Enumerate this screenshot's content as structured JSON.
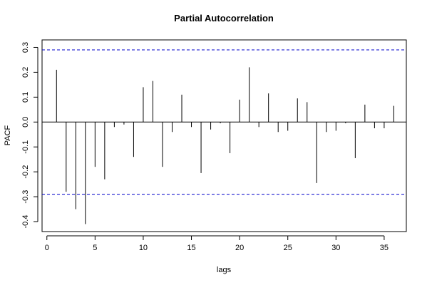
{
  "chart_data": {
    "type": "bar",
    "title": "Partial Autocorrelation",
    "xlabel": "lags",
    "ylabel": "PACF",
    "xlim": [
      -0.5,
      37.3
    ],
    "ylim": [
      -0.44,
      0.33
    ],
    "x_ticks": [
      0,
      5,
      10,
      15,
      20,
      25,
      30,
      35
    ],
    "y_ticks": [
      -0.4,
      -0.3,
      -0.2,
      -0.1,
      0.0,
      0.1,
      0.2,
      0.3
    ],
    "y_tick_labels": [
      "-0.4",
      "-0.3",
      "-0.2",
      "-0.1",
      "0.0",
      "0.1",
      "0.2",
      "0.3"
    ],
    "confidence_bounds": [
      0.29,
      -0.29
    ],
    "confidence_line_color": "#0000cc",
    "series": [
      {
        "x": [
          1,
          2,
          3,
          4,
          5,
          6,
          7,
          8,
          9,
          10,
          11,
          12,
          13,
          14,
          15,
          16,
          17,
          18,
          19,
          20,
          21,
          22,
          23,
          24,
          25,
          26,
          27,
          28,
          29,
          30,
          31,
          32,
          33,
          34,
          35,
          36
        ],
        "values": [
          0.21,
          -0.28,
          -0.35,
          -0.41,
          -0.18,
          -0.23,
          -0.02,
          -0.01,
          -0.14,
          0.14,
          0.165,
          -0.18,
          -0.04,
          0.11,
          -0.02,
          -0.205,
          -0.03,
          -0.005,
          -0.125,
          0.09,
          0.22,
          -0.02,
          0.115,
          -0.04,
          -0.035,
          0.095,
          0.08,
          -0.245,
          -0.04,
          -0.035,
          -0.005,
          -0.145,
          0.07,
          -0.025,
          -0.025,
          0.065
        ]
      }
    ],
    "grid": false,
    "legend": "none"
  }
}
